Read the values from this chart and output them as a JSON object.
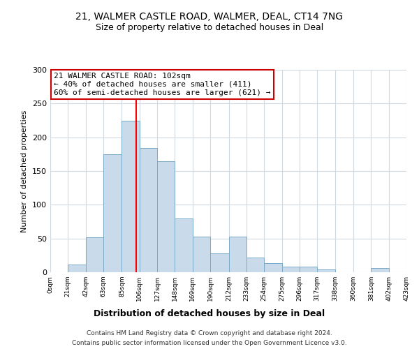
{
  "title_line1": "21, WALMER CASTLE ROAD, WALMER, DEAL, CT14 7NG",
  "title_line2": "Size of property relative to detached houses in Deal",
  "xlabel": "Distribution of detached houses by size in Deal",
  "ylabel": "Number of detached properties",
  "bar_edges": [
    0,
    21,
    42,
    63,
    85,
    106,
    127,
    148,
    169,
    190,
    212,
    233,
    254,
    275,
    296,
    317,
    338,
    360,
    381,
    402,
    423
  ],
  "bar_heights": [
    0,
    11,
    52,
    175,
    225,
    184,
    164,
    80,
    53,
    28,
    53,
    22,
    13,
    8,
    8,
    4,
    0,
    0,
    6,
    0
  ],
  "bar_color": "#c9daea",
  "bar_edge_color": "#7aaac8",
  "grid_color": "#d0d8e0",
  "red_line_x": 102,
  "annotation_title": "21 WALMER CASTLE ROAD: 102sqm",
  "annotation_line2": "← 40% of detached houses are smaller (411)",
  "annotation_line3": "60% of semi-detached houses are larger (621) →",
  "annotation_box_color": "#ffffff",
  "annotation_box_edge": "#cc0000",
  "ylim": [
    0,
    300
  ],
  "yticks": [
    0,
    50,
    100,
    150,
    200,
    250,
    300
  ],
  "tick_labels": [
    "0sqm",
    "21sqm",
    "42sqm",
    "63sqm",
    "85sqm",
    "106sqm",
    "127sqm",
    "148sqm",
    "169sqm",
    "190sqm",
    "212sqm",
    "233sqm",
    "254sqm",
    "275sqm",
    "296sqm",
    "317sqm",
    "338sqm",
    "360sqm",
    "381sqm",
    "402sqm",
    "423sqm"
  ],
  "footer_line1": "Contains HM Land Registry data © Crown copyright and database right 2024.",
  "footer_line2": "Contains public sector information licensed under the Open Government Licence v3.0."
}
